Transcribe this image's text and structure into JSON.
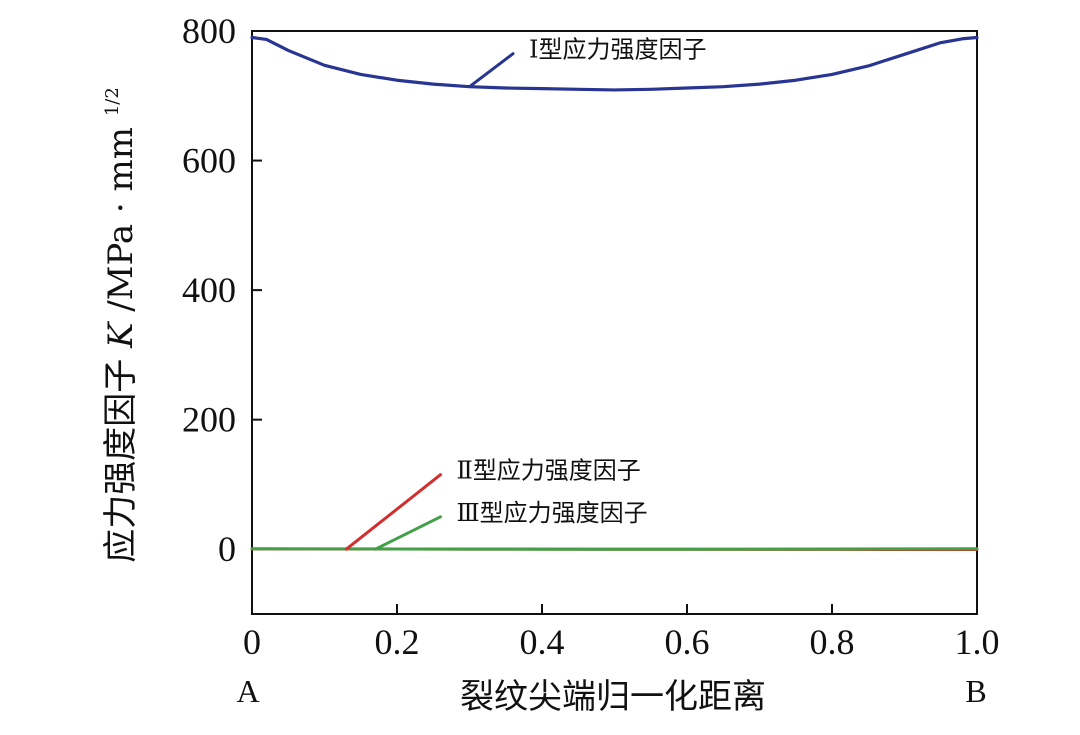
{
  "chart_data": {
    "type": "line",
    "xlabel": "裂纹尖端归一化距离",
    "ylabel": "应力强度因子K/MPa · mm^1/2",
    "ylabel_parts": {
      "prefix": "应力强度因子",
      "variable": "K",
      "units": "/MPa · mm",
      "superscript": "1/2"
    },
    "xlim": [
      0,
      1.0
    ],
    "ylim": [
      -100,
      800
    ],
    "x_ticks": [
      0,
      0.2,
      0.4,
      0.6,
      0.8,
      1.0
    ],
    "x_tick_labels": [
      "0",
      "0.2",
      "0.4",
      "0.6",
      "0.8",
      "1.0"
    ],
    "y_ticks": [
      0,
      200,
      400,
      600,
      800
    ],
    "y_tick_labels": [
      "0",
      "200",
      "400",
      "600",
      "800"
    ],
    "endpoint_labels": {
      "left": "A",
      "right": "B"
    },
    "grid": false,
    "series": [
      {
        "name": "Ⅰ型应力强度因子",
        "color": "#283593",
        "x": [
          0,
          0.02,
          0.05,
          0.1,
          0.15,
          0.2,
          0.25,
          0.3,
          0.35,
          0.4,
          0.45,
          0.5,
          0.55,
          0.6,
          0.65,
          0.7,
          0.75,
          0.8,
          0.85,
          0.9,
          0.95,
          0.98,
          1.0
        ],
        "values": [
          790,
          787,
          770,
          747,
          733,
          724,
          718,
          714,
          712,
          711,
          710,
          709,
          710,
          712,
          714,
          718,
          724,
          733,
          746,
          764,
          782,
          788,
          790
        ]
      },
      {
        "name": "Ⅱ型应力强度因子",
        "color": "#d32f2f",
        "x": [
          0,
          0.1,
          0.2,
          0.3,
          0.4,
          0.5,
          0.6,
          0.7,
          0.8,
          0.9,
          1.0
        ],
        "values": [
          0.5,
          0.4,
          0.3,
          0.2,
          0.1,
          0.0,
          -0.1,
          -0.2,
          -0.3,
          -0.4,
          -0.5
        ]
      },
      {
        "name": "Ⅲ型应力强度因子",
        "color": "#43a047",
        "x": [
          0,
          0.1,
          0.2,
          0.3,
          0.4,
          0.5,
          0.6,
          0.7,
          0.8,
          0.9,
          1.0
        ],
        "values": [
          0.8,
          0.6,
          0.4,
          0.2,
          0.0,
          -0.1,
          0.0,
          0.2,
          0.4,
          0.6,
          0.8
        ]
      }
    ],
    "annotations": [
      {
        "text": "Ⅰ型应力强度因子",
        "series": "Ⅰ型应力强度因子",
        "point": [
          0.3,
          714
        ],
        "text_anchor": [
          0.36,
          765
        ],
        "color": "#283593"
      },
      {
        "text": "Ⅱ型应力强度因子",
        "series": "Ⅱ型应力强度因子",
        "point": [
          0.13,
          0
        ],
        "text_anchor": [
          0.26,
          115
        ],
        "color": "#d32f2f"
      },
      {
        "text": "Ⅲ型应力强度因子",
        "series": "Ⅲ型应力强度因子",
        "point": [
          0.17,
          0
        ],
        "text_anchor": [
          0.26,
          50
        ],
        "color": "#43a047"
      }
    ]
  }
}
